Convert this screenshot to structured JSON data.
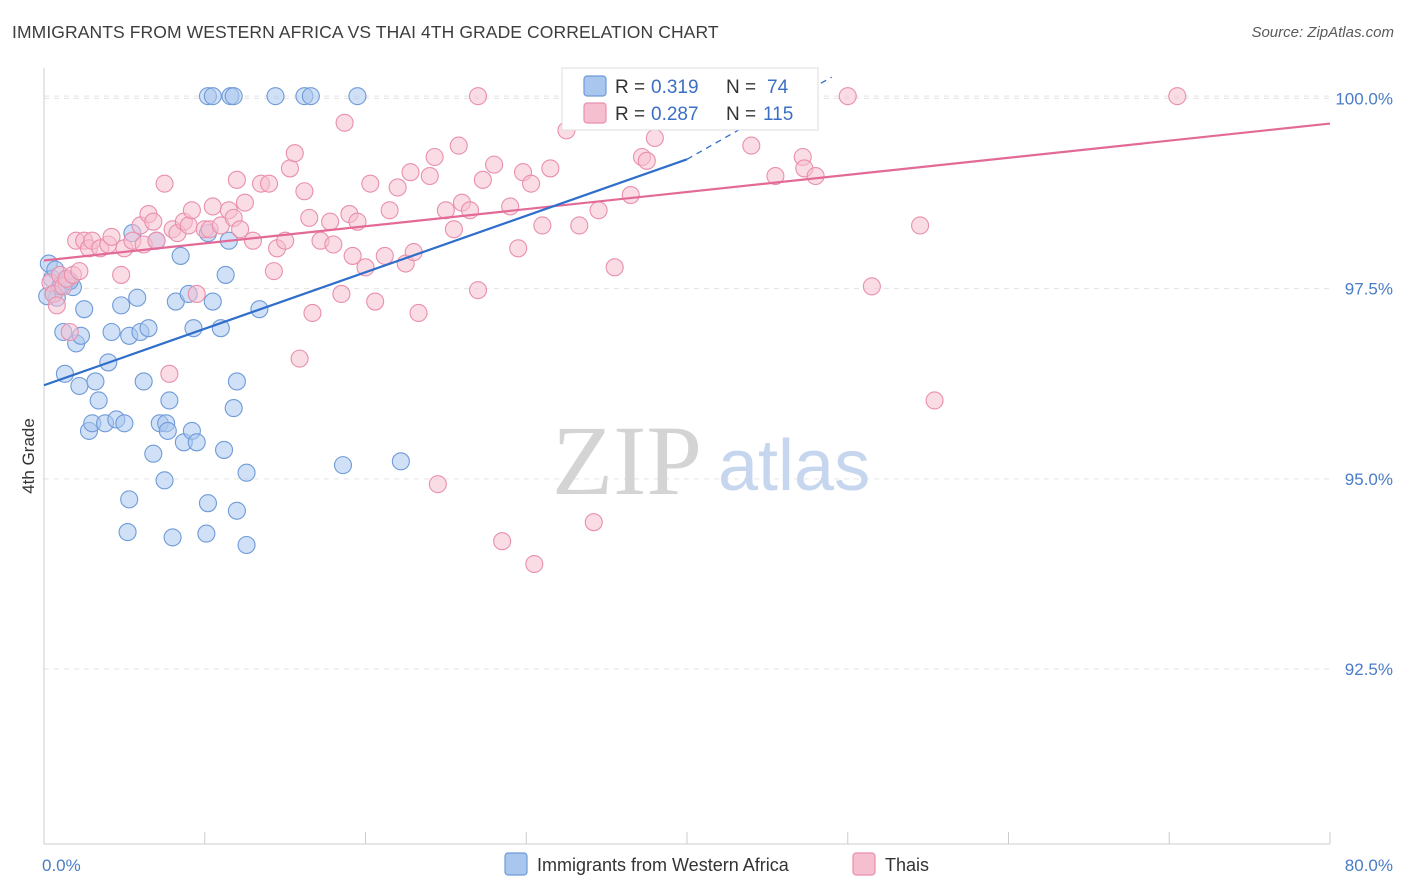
{
  "header": {
    "title": "IMMIGRANTS FROM WESTERN AFRICA VS THAI 4TH GRADE CORRELATION CHART",
    "source": "Source: ZipAtlas.com"
  },
  "watermark": {
    "zip": "ZIP",
    "atlas": "atlas"
  },
  "legend": {
    "series1": {
      "r_label": "R =",
      "r_value": "0.319",
      "n_label": "N =",
      "n_value": "74"
    },
    "series2": {
      "r_label": "R =",
      "r_value": "0.287",
      "n_label": "N =",
      "n_value": "115"
    }
  },
  "bottom_legend": {
    "series1": "Immigrants from Western Africa",
    "series2": "Thais"
  },
  "colors": {
    "blue_fill": "#a9c6ef",
    "blue_stroke": "#6f9bd8",
    "blue_line": "#2f6fcb",
    "pink_fill": "#f6bfd0",
    "pink_stroke": "#e98fad",
    "pink_line": "#e36a96",
    "tick_text": "#4a7cc7",
    "grid": "#e3e3e3"
  },
  "chart_data": {
    "type": "scatter",
    "title": "IMMIGRANTS FROM WESTERN AFRICA VS THAI 4TH GRADE CORRELATION CHART",
    "xlabel": "",
    "ylabel": "4th Grade",
    "xlim": [
      0,
      80
    ],
    "ylim": [
      90.2,
      100.4
    ],
    "x_tick_labels": [
      {
        "value": 0,
        "label": "0.0%"
      },
      {
        "value": 80,
        "label": "80.0%"
      }
    ],
    "y_tick_labels": [
      {
        "value": 100.0,
        "label": "100.0%"
      },
      {
        "value": 97.5,
        "label": "97.5%"
      },
      {
        "value": 95.0,
        "label": "95.0%"
      },
      {
        "value": 92.5,
        "label": "92.5%"
      }
    ],
    "series": [
      {
        "name": "Immigrants from Western Africa",
        "color": "blue",
        "R": 0.319,
        "N": 74,
        "trend": {
          "x0": 0,
          "y0": 96.23,
          "x1": 40.0,
          "y1": 99.2,
          "dash_to_x": 49.0,
          "dash_to_y": 100.28
        },
        "points": [
          [
            0.3,
            97.83
          ],
          [
            0.5,
            97.63
          ],
          [
            0.6,
            97.43
          ],
          [
            0.8,
            97.38
          ],
          [
            1.0,
            97.53
          ],
          [
            1.2,
            96.93
          ],
          [
            1.3,
            96.38
          ],
          [
            1.5,
            97.62
          ],
          [
            1.8,
            97.52
          ],
          [
            2.0,
            96.78
          ],
          [
            2.2,
            96.22
          ],
          [
            2.3,
            96.88
          ],
          [
            2.5,
            97.23
          ],
          [
            2.8,
            95.63
          ],
          [
            3.0,
            95.73
          ],
          [
            3.2,
            96.28
          ],
          [
            3.4,
            96.03
          ],
          [
            3.8,
            95.73
          ],
          [
            4.0,
            96.53
          ],
          [
            4.2,
            96.93
          ],
          [
            4.5,
            95.78
          ],
          [
            4.8,
            97.28
          ],
          [
            5.0,
            95.73
          ],
          [
            5.2,
            94.3
          ],
          [
            5.3,
            96.88
          ],
          [
            5.5,
            98.23
          ],
          [
            5.3,
            94.73
          ],
          [
            6.0,
            96.93
          ],
          [
            5.8,
            97.38
          ],
          [
            6.2,
            96.28
          ],
          [
            6.5,
            96.98
          ],
          [
            6.8,
            95.33
          ],
          [
            7.0,
            98.13
          ],
          [
            7.2,
            95.73
          ],
          [
            7.5,
            94.98
          ],
          [
            7.8,
            96.03
          ],
          [
            7.6,
            95.73
          ],
          [
            7.7,
            95.63
          ],
          [
            8.0,
            94.23
          ],
          [
            8.2,
            97.33
          ],
          [
            8.5,
            97.93
          ],
          [
            8.7,
            95.48
          ],
          [
            9.0,
            97.43
          ],
          [
            9.2,
            95.63
          ],
          [
            9.3,
            96.98
          ],
          [
            9.5,
            95.48
          ],
          [
            10.2,
            94.68
          ],
          [
            10.1,
            94.28
          ],
          [
            10.5,
            97.33
          ],
          [
            10.2,
            98.23
          ],
          [
            11.0,
            96.98
          ],
          [
            11.2,
            95.38
          ],
          [
            11.5,
            98.13
          ],
          [
            11.3,
            97.68
          ],
          [
            11.8,
            95.93
          ],
          [
            12.0,
            96.28
          ],
          [
            12.0,
            94.58
          ],
          [
            12.6,
            94.13
          ],
          [
            12.6,
            95.08
          ],
          [
            13.4,
            97.23
          ],
          [
            10.2,
            100.03
          ],
          [
            10.5,
            100.03
          ],
          [
            11.6,
            100.03
          ],
          [
            11.8,
            100.03
          ],
          [
            14.4,
            100.03
          ],
          [
            16.2,
            100.03
          ],
          [
            16.6,
            100.03
          ],
          [
            19.5,
            100.03
          ],
          [
            18.6,
            95.18
          ],
          [
            22.2,
            95.23
          ],
          [
            0.2,
            97.4
          ],
          [
            0.7,
            97.75
          ],
          [
            1.1,
            97.55
          ],
          [
            1.6,
            97.6
          ]
        ]
      },
      {
        "name": "Thais",
        "color": "pink",
        "R": 0.287,
        "N": 115,
        "trend": {
          "x0": 0,
          "y0": 97.87,
          "x1": 80,
          "y1": 99.67
        },
        "points": [
          [
            0.4,
            97.58
          ],
          [
            0.6,
            97.43
          ],
          [
            0.8,
            97.28
          ],
          [
            1.0,
            97.68
          ],
          [
            1.2,
            97.53
          ],
          [
            1.4,
            97.63
          ],
          [
            1.6,
            96.93
          ],
          [
            1.8,
            97.68
          ],
          [
            2.0,
            98.13
          ],
          [
            2.2,
            97.73
          ],
          [
            2.5,
            98.13
          ],
          [
            2.8,
            98.03
          ],
          [
            3.0,
            98.13
          ],
          [
            3.5,
            98.03
          ],
          [
            4.0,
            98.08
          ],
          [
            4.2,
            98.18
          ],
          [
            4.8,
            97.68
          ],
          [
            5.0,
            98.03
          ],
          [
            5.5,
            98.13
          ],
          [
            6.0,
            98.33
          ],
          [
            6.2,
            98.08
          ],
          [
            6.5,
            98.48
          ],
          [
            6.8,
            98.38
          ],
          [
            7.0,
            98.13
          ],
          [
            7.5,
            98.88
          ],
          [
            7.8,
            96.38
          ],
          [
            8.0,
            98.28
          ],
          [
            8.3,
            98.23
          ],
          [
            8.7,
            98.38
          ],
          [
            9.0,
            98.33
          ],
          [
            9.2,
            98.53
          ],
          [
            9.5,
            97.43
          ],
          [
            10.0,
            98.28
          ],
          [
            10.3,
            98.28
          ],
          [
            10.5,
            98.58
          ],
          [
            11.0,
            98.33
          ],
          [
            11.5,
            98.53
          ],
          [
            11.8,
            98.43
          ],
          [
            12.0,
            98.93
          ],
          [
            12.2,
            98.28
          ],
          [
            12.5,
            98.63
          ],
          [
            13.0,
            98.13
          ],
          [
            13.5,
            98.88
          ],
          [
            14.0,
            98.88
          ],
          [
            14.3,
            97.73
          ],
          [
            14.5,
            98.03
          ],
          [
            15.0,
            98.13
          ],
          [
            15.3,
            99.08
          ],
          [
            15.6,
            99.28
          ],
          [
            15.9,
            96.58
          ],
          [
            16.2,
            98.78
          ],
          [
            16.5,
            98.43
          ],
          [
            16.7,
            97.18
          ],
          [
            17.2,
            98.13
          ],
          [
            17.8,
            98.38
          ],
          [
            18.0,
            98.08
          ],
          [
            18.5,
            97.43
          ],
          [
            18.7,
            99.68
          ],
          [
            19.0,
            98.48
          ],
          [
            19.2,
            97.93
          ],
          [
            19.5,
            98.38
          ],
          [
            20.0,
            97.78
          ],
          [
            20.3,
            98.88
          ],
          [
            20.6,
            97.33
          ],
          [
            21.2,
            97.93
          ],
          [
            21.5,
            98.53
          ],
          [
            22.0,
            98.83
          ],
          [
            22.5,
            97.83
          ],
          [
            22.8,
            99.03
          ],
          [
            23.0,
            97.98
          ],
          [
            23.3,
            97.18
          ],
          [
            24.0,
            98.98
          ],
          [
            24.3,
            99.23
          ],
          [
            24.5,
            94.93
          ],
          [
            25.0,
            98.53
          ],
          [
            25.5,
            98.28
          ],
          [
            25.8,
            99.38
          ],
          [
            26.0,
            98.63
          ],
          [
            26.5,
            98.53
          ],
          [
            27.0,
            97.48
          ],
          [
            27.3,
            98.93
          ],
          [
            28.0,
            99.13
          ],
          [
            28.5,
            94.18
          ],
          [
            29.0,
            98.58
          ],
          [
            29.5,
            98.03
          ],
          [
            29.8,
            99.03
          ],
          [
            30.3,
            98.88
          ],
          [
            30.5,
            93.88
          ],
          [
            31.0,
            98.33
          ],
          [
            31.5,
            99.08
          ],
          [
            32.5,
            99.58
          ],
          [
            32.8,
            99.73
          ],
          [
            33.3,
            98.33
          ],
          [
            34.2,
            94.43
          ],
          [
            34.5,
            98.53
          ],
          [
            35.5,
            97.78
          ],
          [
            36.5,
            98.73
          ],
          [
            37.2,
            99.23
          ],
          [
            37.5,
            99.18
          ],
          [
            38.0,
            99.48
          ],
          [
            45.5,
            98.98
          ],
          [
            47.2,
            99.23
          ],
          [
            47.3,
            99.08
          ],
          [
            48.0,
            98.98
          ],
          [
            50.0,
            100.03
          ],
          [
            51.5,
            97.53
          ],
          [
            54.5,
            98.33
          ],
          [
            55.4,
            96.03
          ],
          [
            70.5,
            100.03
          ],
          [
            27.0,
            100.03
          ],
          [
            33.0,
            100.03
          ],
          [
            46.5,
            99.73
          ],
          [
            44.0,
            99.38
          ],
          [
            40.0,
            100.03
          ],
          [
            36.0,
            99.88
          ]
        ]
      }
    ]
  }
}
